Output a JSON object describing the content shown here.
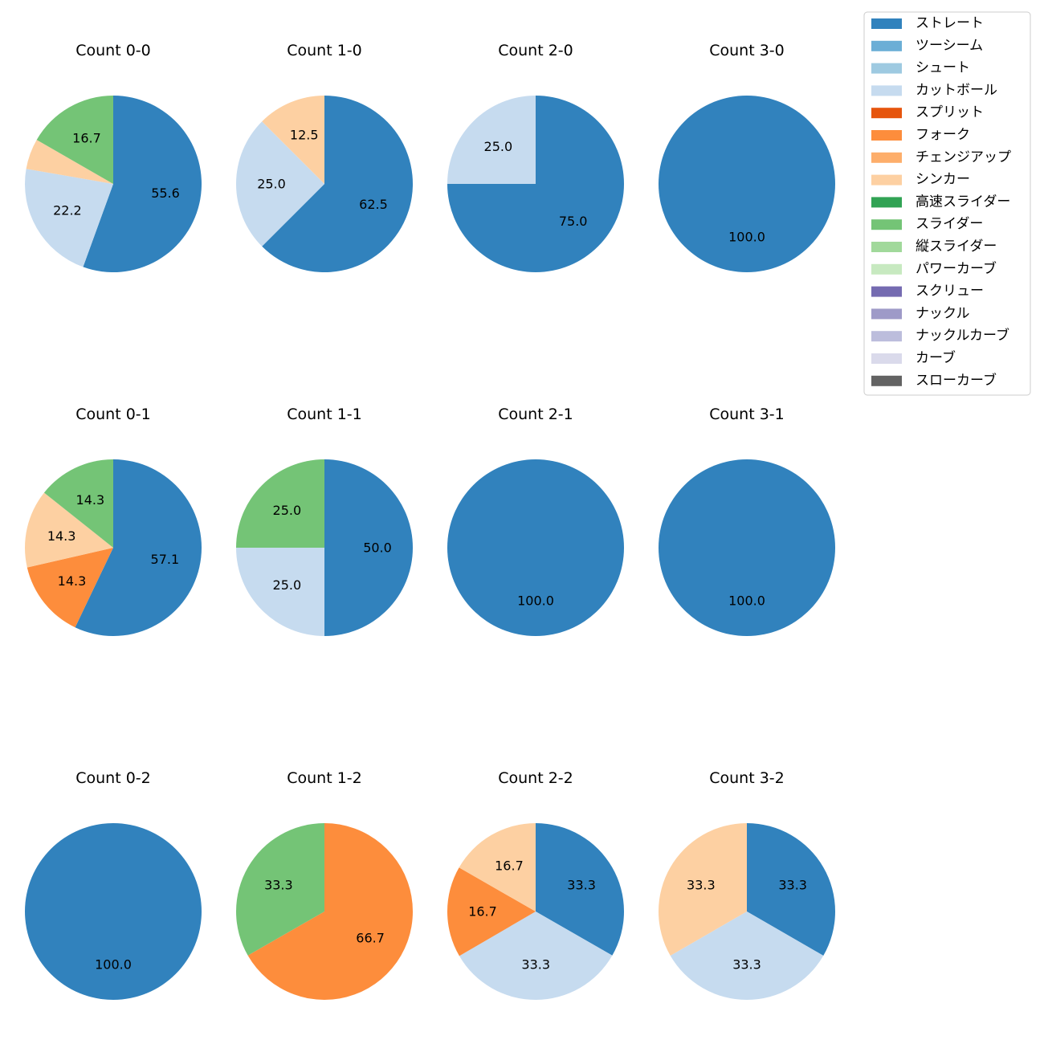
{
  "chart_data": {
    "type": "pie",
    "legend": {
      "placement": "top-right",
      "entries": [
        {
          "name": "ストレート",
          "color": "#3182bd"
        },
        {
          "name": "ツーシーム",
          "color": "#6baed6"
        },
        {
          "name": "シュート",
          "color": "#9ecae1"
        },
        {
          "name": "カットボール",
          "color": "#c6dbef"
        },
        {
          "name": "スプリット",
          "color": "#e6550d"
        },
        {
          "name": "フォーク",
          "color": "#fd8d3c"
        },
        {
          "name": "チェンジアップ",
          "color": "#fdae6b"
        },
        {
          "name": "シンカー",
          "color": "#fdd0a2"
        },
        {
          "name": "高速スライダー",
          "color": "#31a354"
        },
        {
          "name": "スライダー",
          "color": "#74c476"
        },
        {
          "name": "縦スライダー",
          "color": "#a1d99b"
        },
        {
          "name": "パワーカーブ",
          "color": "#c7e9c0"
        },
        {
          "name": "スクリュー",
          "color": "#756bb1"
        },
        {
          "name": "ナックル",
          "color": "#9e9ac8"
        },
        {
          "name": "ナックルカーブ",
          "color": "#bcbddc"
        },
        {
          "name": "カーブ",
          "color": "#dadaeb"
        },
        {
          "name": "スローカーブ",
          "color": "#636363"
        }
      ]
    },
    "pies": [
      {
        "title": "Count 0-0",
        "slices": [
          {
            "pitch": "ストレート",
            "value": 55.6,
            "label": "55.6"
          },
          {
            "pitch": "カットボール",
            "value": 22.2,
            "label": "22.2"
          },
          {
            "pitch": "シンカー",
            "value": 5.6,
            "label": ""
          },
          {
            "pitch": "スライダー",
            "value": 16.7,
            "label": "16.7"
          }
        ]
      },
      {
        "title": "Count 1-0",
        "slices": [
          {
            "pitch": "ストレート",
            "value": 62.5,
            "label": "62.5"
          },
          {
            "pitch": "カットボール",
            "value": 25.0,
            "label": "25.0"
          },
          {
            "pitch": "シンカー",
            "value": 12.5,
            "label": "12.5"
          }
        ]
      },
      {
        "title": "Count 2-0",
        "slices": [
          {
            "pitch": "ストレート",
            "value": 75.0,
            "label": "75.0"
          },
          {
            "pitch": "カットボール",
            "value": 25.0,
            "label": "25.0"
          }
        ]
      },
      {
        "title": "Count 3-0",
        "slices": [
          {
            "pitch": "ストレート",
            "value": 100.0,
            "label": "100.0"
          }
        ]
      },
      {
        "title": "Count 0-1",
        "slices": [
          {
            "pitch": "ストレート",
            "value": 57.1,
            "label": "57.1"
          },
          {
            "pitch": "フォーク",
            "value": 14.3,
            "label": "14.3"
          },
          {
            "pitch": "シンカー",
            "value": 14.3,
            "label": "14.3"
          },
          {
            "pitch": "スライダー",
            "value": 14.3,
            "label": "14.3"
          }
        ]
      },
      {
        "title": "Count 1-1",
        "slices": [
          {
            "pitch": "ストレート",
            "value": 50.0,
            "label": "50.0"
          },
          {
            "pitch": "カットボール",
            "value": 25.0,
            "label": "25.0"
          },
          {
            "pitch": "スライダー",
            "value": 25.0,
            "label": "25.0"
          }
        ]
      },
      {
        "title": "Count 2-1",
        "slices": [
          {
            "pitch": "ストレート",
            "value": 100.0,
            "label": "100.0"
          }
        ]
      },
      {
        "title": "Count 3-1",
        "slices": [
          {
            "pitch": "ストレート",
            "value": 100.0,
            "label": "100.0"
          }
        ]
      },
      {
        "title": "Count 0-2",
        "slices": [
          {
            "pitch": "ストレート",
            "value": 100.0,
            "label": "100.0"
          }
        ]
      },
      {
        "title": "Count 1-2",
        "slices": [
          {
            "pitch": "フォーク",
            "value": 66.7,
            "label": "66.7"
          },
          {
            "pitch": "スライダー",
            "value": 33.3,
            "label": "33.3"
          }
        ]
      },
      {
        "title": "Count 2-2",
        "slices": [
          {
            "pitch": "ストレート",
            "value": 33.3,
            "label": "33.3"
          },
          {
            "pitch": "カットボール",
            "value": 33.3,
            "label": "33.3"
          },
          {
            "pitch": "フォーク",
            "value": 16.7,
            "label": "16.7"
          },
          {
            "pitch": "シンカー",
            "value": 16.7,
            "label": "16.7"
          }
        ]
      },
      {
        "title": "Count 3-2",
        "slices": [
          {
            "pitch": "ストレート",
            "value": 33.3,
            "label": "33.3"
          },
          {
            "pitch": "カットボール",
            "value": 33.3,
            "label": "33.3"
          },
          {
            "pitch": "シンカー",
            "value": 33.3,
            "label": "33.3"
          }
        ]
      }
    ]
  }
}
